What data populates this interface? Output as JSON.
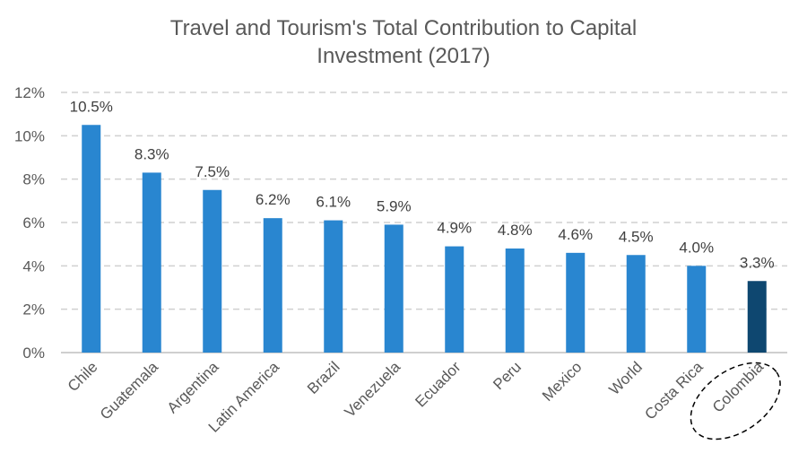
{
  "chart_data": {
    "type": "bar",
    "title_lines": [
      "Travel and Tourism's Total Contribution to Capital",
      "Investment (2017)"
    ],
    "categories": [
      "Chile",
      "Guatemala",
      "Argentina",
      "Latin America",
      "Brazil",
      "Venezuela",
      "Ecuador",
      "Peru",
      "Mexico",
      "World",
      "Costa Rica",
      "Colombia"
    ],
    "values": [
      10.5,
      8.3,
      7.5,
      6.2,
      6.1,
      5.9,
      4.9,
      4.8,
      4.6,
      4.5,
      4.0,
      3.3
    ],
    "data_labels": [
      "10.5%",
      "8.3%",
      "7.5%",
      "6.2%",
      "6.1%",
      "5.9%",
      "4.9%",
      "4.8%",
      "4.6%",
      "4.5%",
      "4.0%",
      "3.3%"
    ],
    "y_ticks": [
      0,
      2,
      4,
      6,
      8,
      10,
      12
    ],
    "y_tick_labels": [
      "0%",
      "2%",
      "4%",
      "6%",
      "8%",
      "10%",
      "12%"
    ],
    "ylim": [
      0,
      12
    ],
    "grid": "horizontal dashed",
    "highlight_category": "Colombia",
    "highlight_style": "darker bar, dashed ellipse around label",
    "colors": {
      "bar": "#2986d0",
      "highlight": "#0e4770",
      "grid": "#d0d0d0",
      "axis": "#bfbfbf",
      "title": "#595959",
      "text": "#404040"
    }
  }
}
